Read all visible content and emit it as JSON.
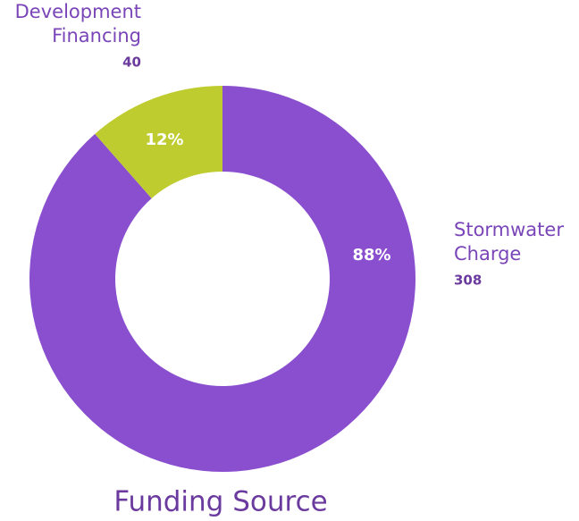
{
  "chart_data": {
    "type": "donut",
    "title": "Funding Source",
    "categories": [
      "Stormwater Charge",
      "Development Financing"
    ],
    "values": [
      308,
      40
    ],
    "percents": [
      {
        "value": 88,
        "label": "88%"
      },
      {
        "value": 12,
        "label": "12%"
      }
    ],
    "colors": [
      "#8a4fcf",
      "#bfcc2f"
    ]
  }
}
